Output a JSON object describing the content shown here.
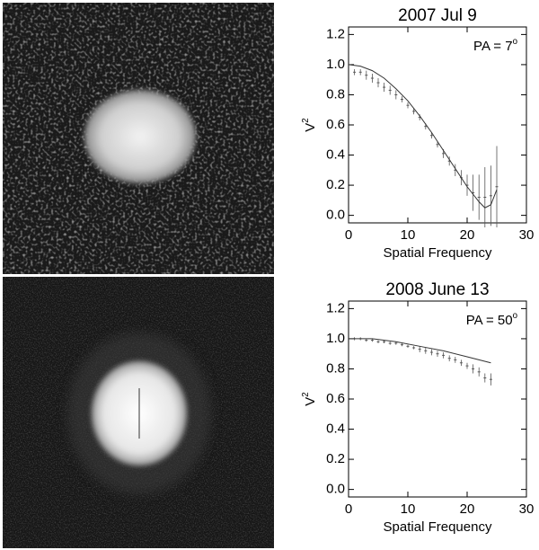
{
  "chart_data": [
    {
      "type": "errorbar",
      "title": "2007 Jul 9",
      "xlabel": "Spatial Frequency",
      "ylabel": {
        "text": "V",
        "sup": "2"
      },
      "annotation": {
        "text": "PA = 7",
        "sup": "o"
      },
      "xlim": [
        0,
        30
      ],
      "ylim": [
        -0.05,
        1.25
      ],
      "xticks": [
        0,
        10,
        20,
        30
      ],
      "yticks": [
        {
          "value": 0,
          "label": "0.0"
        },
        0.2,
        0.4,
        0.6,
        0.8,
        {
          "value": 1,
          "label": "1.0"
        },
        1.2
      ],
      "series": [
        {
          "style": "errorbar",
          "color": "#555555",
          "x": [
            1,
            2,
            3,
            4,
            5,
            6,
            7,
            8,
            9,
            10,
            11,
            12,
            13,
            14,
            15,
            16,
            17,
            18,
            19,
            20,
            21,
            22,
            23,
            24,
            25
          ],
          "values": [
            0.95,
            0.95,
            0.93,
            0.91,
            0.88,
            0.85,
            0.83,
            0.8,
            0.77,
            0.73,
            0.69,
            0.65,
            0.59,
            0.53,
            0.47,
            0.41,
            0.36,
            0.3,
            0.25,
            0.2,
            0.15,
            0.12,
            0.12,
            0.13,
            0.19
          ],
          "errors": [
            0.02,
            0.02,
            0.03,
            0.03,
            0.03,
            0.03,
            0.03,
            0.03,
            0.02,
            0.02,
            0.02,
            0.02,
            0.02,
            0.02,
            0.02,
            0.03,
            0.03,
            0.04,
            0.05,
            0.07,
            0.12,
            0.15,
            0.2,
            0.2,
            0.27
          ]
        },
        {
          "style": "line",
          "color": "#333333",
          "x": [
            0,
            2,
            4,
            6,
            8,
            10,
            12,
            14,
            16,
            18,
            20,
            22,
            23,
            24,
            25
          ],
          "values": [
            1.0,
            0.99,
            0.96,
            0.91,
            0.84,
            0.76,
            0.66,
            0.55,
            0.43,
            0.31,
            0.19,
            0.09,
            0.05,
            0.07,
            0.17
          ]
        }
      ]
    },
    {
      "type": "errorbar",
      "title": "2008 June 13",
      "xlabel": "Spatial Frequency",
      "ylabel": {
        "text": "V",
        "sup": "2"
      },
      "annotation": {
        "text": "PA = 50",
        "sup": "o"
      },
      "xlim": [
        0,
        30
      ],
      "ylim": [
        -0.05,
        1.25
      ],
      "xticks": [
        0,
        10,
        20,
        30
      ],
      "yticks": [
        {
          "value": 0,
          "label": "0.0"
        },
        0.2,
        0.4,
        0.6,
        0.8,
        {
          "value": 1,
          "label": "1.0"
        },
        1.2
      ],
      "series": [
        {
          "style": "errorbar",
          "color": "#555555",
          "x": [
            1,
            2,
            3,
            4,
            5,
            6,
            7,
            8,
            9,
            10,
            11,
            12,
            13,
            14,
            15,
            16,
            17,
            18,
            19,
            20,
            21,
            22,
            23,
            24
          ],
          "values": [
            1.0,
            1.0,
            0.99,
            0.99,
            0.98,
            0.98,
            0.97,
            0.97,
            0.96,
            0.95,
            0.94,
            0.93,
            0.92,
            0.91,
            0.9,
            0.89,
            0.87,
            0.86,
            0.84,
            0.82,
            0.8,
            0.78,
            0.74,
            0.73
          ],
          "errors": [
            0.01,
            0.01,
            0.01,
            0.01,
            0.01,
            0.01,
            0.01,
            0.01,
            0.01,
            0.01,
            0.01,
            0.02,
            0.02,
            0.02,
            0.02,
            0.02,
            0.02,
            0.02,
            0.02,
            0.02,
            0.03,
            0.03,
            0.03,
            0.04
          ]
        },
        {
          "style": "line",
          "color": "#333333",
          "x": [
            0,
            4,
            8,
            12,
            16,
            20,
            24
          ],
          "values": [
            1.0,
            1.0,
            0.98,
            0.95,
            0.92,
            0.88,
            0.84
          ]
        }
      ]
    }
  ]
}
